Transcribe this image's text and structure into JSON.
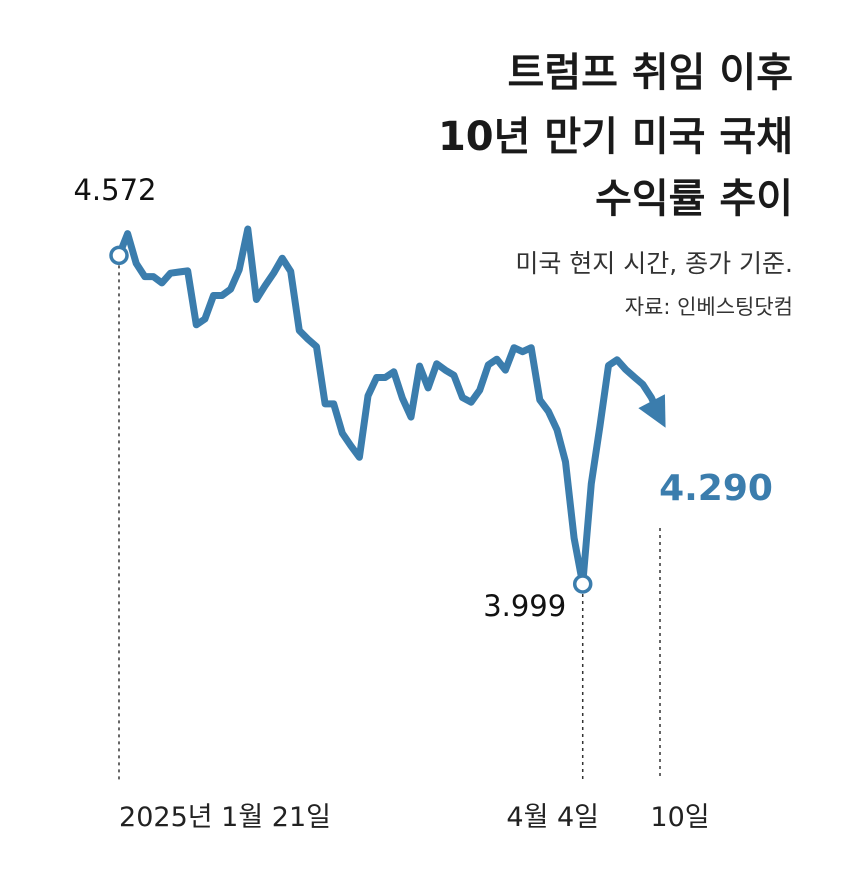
{
  "title_lines": [
    "트럼프 취임 이후",
    "10년 만기 미국 국채",
    "수익률 추이"
  ],
  "subtitle": "미국 현지 시간, 종가 기준.",
  "source": "자료: 인베스팅닷컴",
  "colors": {
    "line": "#3b7dad",
    "text": "#1a1a1a"
  },
  "chart_data": {
    "type": "line",
    "title": "트럼프 취임 이후 10년 만기 미국 국채 수익률 추이",
    "x": [
      0,
      1,
      2,
      3,
      4,
      5,
      6,
      7,
      8,
      9,
      10,
      11,
      12,
      13,
      14,
      15,
      16,
      17,
      18,
      19,
      20,
      21,
      22,
      23,
      24,
      25,
      26,
      27,
      28,
      29,
      30,
      31,
      32,
      33,
      34,
      35,
      36,
      37,
      38,
      39,
      40,
      41,
      42,
      43,
      44,
      45,
      46,
      47,
      48,
      49,
      50,
      51,
      52,
      53,
      54,
      55,
      56,
      57,
      58,
      59,
      60,
      61,
      62,
      63
    ],
    "values": [
      4.572,
      4.61,
      4.558,
      4.535,
      4.535,
      4.524,
      4.541,
      4.543,
      4.545,
      4.451,
      4.461,
      4.502,
      4.502,
      4.513,
      4.547,
      4.618,
      4.495,
      4.519,
      4.541,
      4.567,
      4.544,
      4.441,
      4.426,
      4.413,
      4.313,
      4.313,
      4.262,
      4.24,
      4.22,
      4.327,
      4.359,
      4.359,
      4.369,
      4.323,
      4.29,
      4.379,
      4.341,
      4.383,
      4.372,
      4.363,
      4.324,
      4.316,
      4.337,
      4.381,
      4.391,
      4.372,
      4.411,
      4.404,
      4.411,
      4.32,
      4.3,
      4.268,
      4.212,
      4.079,
      3.999,
      4.174,
      4.274,
      4.38,
      4.39,
      4.373,
      4.36,
      4.347,
      4.324,
      4.29
    ],
    "ylim": [
      3.999,
      4.618
    ],
    "annotations": [
      {
        "index": 0,
        "label": "4.572"
      },
      {
        "index": 54,
        "label": "3.999"
      },
      {
        "index": 63,
        "label": "4.290"
      }
    ],
    "x_tick_labels": [
      {
        "index": 0,
        "label": "2025년 1월 21일"
      },
      {
        "index": 54,
        "label": "4월 4일"
      },
      {
        "index": 63,
        "label": "10일"
      }
    ],
    "grid": false,
    "legend": "none"
  }
}
